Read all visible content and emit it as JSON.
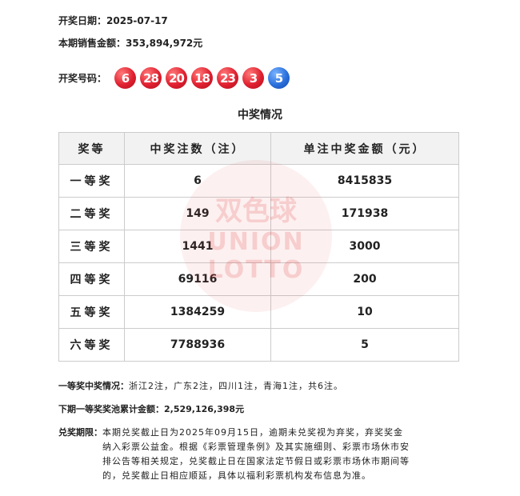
{
  "draw_date": {
    "label": "开奖日期：",
    "value": "2025-07-17"
  },
  "sales": {
    "label": "本期销售金额：",
    "value": "353,894,972元"
  },
  "numbers": {
    "label": "开奖号码：",
    "red": [
      "6",
      "28",
      "20",
      "18",
      "23",
      "3"
    ],
    "blue": [
      "5"
    ],
    "red_color": "#e02030",
    "blue_color": "#2a6fdc"
  },
  "section_title": "中奖情况",
  "table": {
    "headers": [
      "奖等",
      "中奖注数（注）",
      "单注中奖金额（元）"
    ],
    "rows": [
      [
        "一等奖",
        "6",
        "8415835"
      ],
      [
        "二等奖",
        "149",
        "171938"
      ],
      [
        "三等奖",
        "1441",
        "3000"
      ],
      [
        "四等奖",
        "69116",
        "200"
      ],
      [
        "五等奖",
        "1384259",
        "10"
      ],
      [
        "六等奖",
        "7788936",
        "5"
      ]
    ]
  },
  "watermark": {
    "line1": "双色球",
    "line2": "UNION",
    "line3": "LOTTO"
  },
  "first_prize": {
    "label": "一等奖中奖情况：",
    "value": "浙江2注，广东2注，四川1注，青海1注，共6注。"
  },
  "pool": {
    "label": "下期一等奖奖池累计金额：",
    "value": "2,529,126,398元"
  },
  "deadline": {
    "label": "兑奖期限：",
    "value": "本期兑奖截止日为2025年09月15日，逾期未兑奖视为弃奖，弃奖奖金纳入彩票公益金。根据《彩票管理条例》及其实施细则、彩票市场休市安排公告等相关规定，兑奖截止日在国家法定节假日或彩票市场休市期间等的，兑奖截止日相应顺延，具体以福利彩票机构发布信息为准。"
  }
}
